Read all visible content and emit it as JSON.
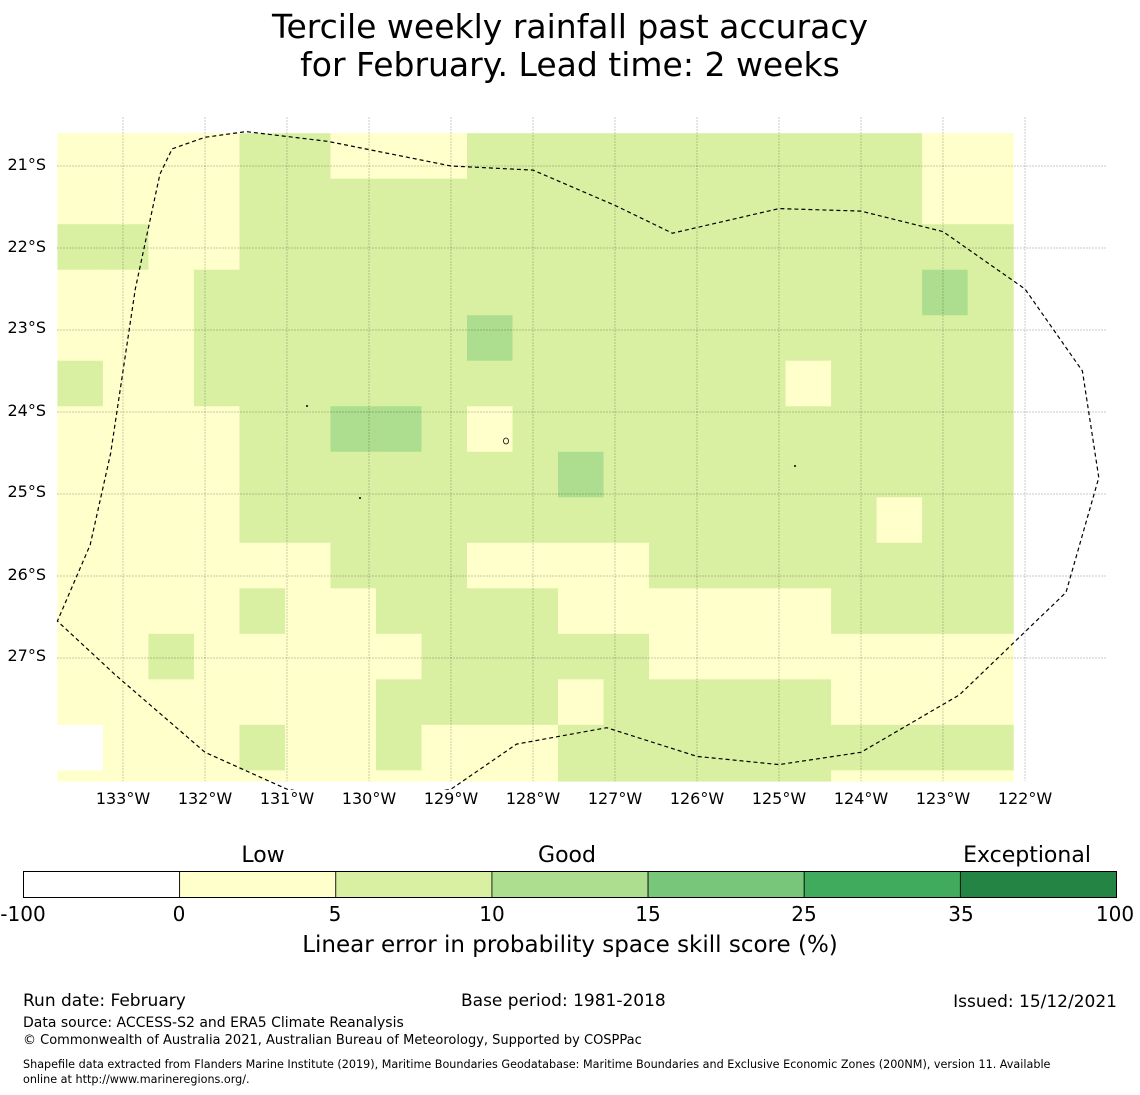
{
  "title": {
    "line1": "Tercile weekly rainfall past accuracy",
    "line2": "for February. Lead time: 2 weeks"
  },
  "map": {
    "lat_labels": [
      "21°S",
      "22°S",
      "23°S",
      "24°S",
      "25°S",
      "26°S",
      "27°S"
    ],
    "lon_labels": [
      "133°W",
      "132°W",
      "131°W",
      "130°W",
      "129°W",
      "128°W",
      "127°W",
      "126°W",
      "125°W",
      "124°W",
      "123°W",
      "122°W"
    ],
    "lat_values": [
      -21,
      -22,
      -23,
      -24,
      -25,
      -26,
      -27
    ],
    "lon_values": [
      -133,
      -132,
      -131,
      -130,
      -129,
      -128,
      -127,
      -126,
      -125,
      -124,
      -123,
      -122
    ],
    "extent": {
      "lon_min": -133.8,
      "lon_max": -121.0,
      "lat_max": -20.6,
      "lat_min": -28.7
    },
    "grid": {
      "cell_size_deg": 0.555,
      "class_index": "0: -100 to 0, 1: 0 to 5, 2: 5 to 10, 3: 10 to 15",
      "rows": [
        [
          1,
          1,
          1,
          1,
          2,
          2,
          1,
          1,
          1,
          2,
          2,
          2,
          2,
          2,
          2,
          2,
          2,
          2,
          2,
          1,
          1
        ],
        [
          1,
          1,
          1,
          1,
          2,
          2,
          2,
          2,
          2,
          2,
          2,
          2,
          2,
          2,
          2,
          2,
          2,
          2,
          2,
          1,
          1
        ],
        [
          2,
          2,
          1,
          1,
          2,
          2,
          2,
          2,
          2,
          2,
          2,
          2,
          2,
          2,
          2,
          2,
          2,
          2,
          2,
          2,
          2
        ],
        [
          1,
          1,
          1,
          2,
          2,
          2,
          2,
          2,
          2,
          2,
          2,
          2,
          2,
          2,
          2,
          2,
          2,
          2,
          2,
          3,
          2
        ],
        [
          1,
          1,
          1,
          2,
          2,
          2,
          2,
          2,
          2,
          3,
          2,
          2,
          2,
          2,
          2,
          2,
          2,
          2,
          2,
          2,
          2
        ],
        [
          2,
          1,
          1,
          2,
          2,
          2,
          2,
          2,
          2,
          2,
          2,
          2,
          2,
          2,
          2,
          2,
          1,
          2,
          2,
          2,
          2
        ],
        [
          1,
          1,
          1,
          1,
          2,
          2,
          3,
          3,
          2,
          1,
          2,
          2,
          2,
          2,
          2,
          2,
          2,
          2,
          2,
          2,
          2
        ],
        [
          1,
          1,
          1,
          1,
          2,
          2,
          2,
          2,
          2,
          2,
          2,
          3,
          2,
          2,
          2,
          2,
          2,
          2,
          2,
          2,
          2
        ],
        [
          1,
          1,
          1,
          1,
          2,
          2,
          2,
          2,
          2,
          2,
          2,
          2,
          2,
          2,
          2,
          2,
          2,
          2,
          1,
          2,
          2
        ],
        [
          1,
          1,
          1,
          1,
          1,
          1,
          2,
          2,
          2,
          1,
          1,
          1,
          1,
          2,
          2,
          2,
          2,
          2,
          2,
          2,
          2
        ],
        [
          1,
          1,
          1,
          1,
          2,
          1,
          1,
          2,
          2,
          2,
          2,
          1,
          1,
          1,
          1,
          1,
          1,
          2,
          2,
          2,
          2
        ],
        [
          1,
          1,
          2,
          1,
          1,
          1,
          1,
          1,
          2,
          2,
          2,
          2,
          2,
          1,
          1,
          1,
          1,
          1,
          1,
          1,
          1
        ],
        [
          1,
          1,
          1,
          1,
          1,
          1,
          1,
          2,
          2,
          2,
          2,
          1,
          2,
          2,
          2,
          2,
          2,
          1,
          1,
          1,
          1
        ],
        [
          0,
          1,
          1,
          1,
          2,
          1,
          1,
          2,
          1,
          1,
          1,
          2,
          2,
          2,
          2,
          2,
          2,
          2,
          2,
          2,
          2
        ],
        [
          1,
          1,
          1,
          1,
          1,
          1,
          1,
          1,
          1,
          1,
          1,
          2,
          2,
          2,
          2,
          2,
          2,
          1,
          1,
          1,
          1
        ]
      ]
    },
    "colors": {
      "class_0": "#ffffff",
      "class_1": "#ffffcc",
      "class_2": "#d9f0a3",
      "class_3": "#addd8e",
      "eez_outline": "#000000"
    },
    "eez_outline": [
      [
        -130.0,
        -28.78
      ],
      [
        -129.0,
        -28.6
      ],
      [
        -128.2,
        -28.05
      ],
      [
        -127.1,
        -27.85
      ],
      [
        -126.0,
        -28.2
      ],
      [
        -125.0,
        -28.3
      ],
      [
        -124.0,
        -28.15
      ],
      [
        -122.8,
        -27.45
      ],
      [
        -121.5,
        -26.2
      ],
      [
        -121.1,
        -24.8
      ],
      [
        -121.3,
        -23.5
      ],
      [
        -122.0,
        -22.5
      ],
      [
        -123.0,
        -21.8
      ],
      [
        -124.0,
        -21.55
      ],
      [
        -125.0,
        -21.52
      ],
      [
        -126.3,
        -21.82
      ],
      [
        -127.0,
        -21.48
      ],
      [
        -128.0,
        -21.05
      ],
      [
        -129.0,
        -21.0
      ],
      [
        -130.5,
        -20.7
      ],
      [
        -131.5,
        -20.58
      ],
      [
        -132.0,
        -20.65
      ],
      [
        -132.4,
        -20.79
      ],
      [
        -132.55,
        -21.1
      ],
      [
        -132.85,
        -22.5
      ],
      [
        -133.15,
        -24.5
      ],
      [
        -133.4,
        -25.62
      ],
      [
        -133.8,
        -26.55
      ],
      [
        -133.1,
        -27.2
      ],
      [
        -132.0,
        -28.15
      ],
      [
        -131.0,
        -28.6
      ]
    ]
  },
  "colorbar": {
    "categories": [
      {
        "label": "Low",
        "at_tick": 0.5
      },
      {
        "label": "Good",
        "at_tick": 2.5
      },
      {
        "label": "Exceptional",
        "at_tick": 6.5
      }
    ],
    "bins": [
      {
        "from": -100,
        "to": 0,
        "color": "#ffffff"
      },
      {
        "from": 0,
        "to": 5,
        "color": "#ffffcc"
      },
      {
        "from": 5,
        "to": 10,
        "color": "#d9f0a3"
      },
      {
        "from": 10,
        "to": 15,
        "color": "#addd8e"
      },
      {
        "from": 15,
        "to": 25,
        "color": "#78c679"
      },
      {
        "from": 25,
        "to": 35,
        "color": "#41ab5d"
      },
      {
        "from": 35,
        "to": 100,
        "color": "#238443"
      }
    ],
    "ticks": [
      "-100",
      "0",
      "5",
      "10",
      "15",
      "25",
      "35",
      "100"
    ],
    "label": "Linear error in probability space skill score (%)"
  },
  "footer": {
    "run_date": "Run date: February",
    "base_period": "Base period: 1981-2018",
    "issued": "Issued: 15/12/2021",
    "data_source": "Data source: ACCESS-S2 and ERA5 Climate Reanalysis",
    "copyright": "© Commonwealth of Australia 2021, Australian Bureau of Meteorology, Supported by COSPPac",
    "shapefile_line1": "Shapefile data extracted from Flanders Marine Institute (2019), Maritime Boundaries Geodatabase: Maritime Boundaries and Exclusive Economic Zones (200NM), version 11. Available",
    "shapefile_line2": "online at http://www.marineregions.org/."
  }
}
